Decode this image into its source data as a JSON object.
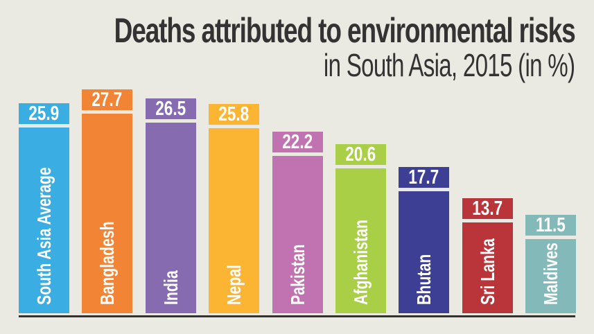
{
  "header": {
    "title": "Deaths attributed to environmental risks",
    "subtitle": "in South Asia, 2015 (in %)"
  },
  "colors": {
    "background": "#ebeae2",
    "text": "#333333",
    "baseline": "#333333"
  },
  "bars": [
    {
      "label": "South Asia Average",
      "value": "25.9",
      "color": "#3aaee3"
    },
    {
      "label": "Bangladesh",
      "value": "27.7",
      "color": "#f28535"
    },
    {
      "label": "India",
      "value": "26.5",
      "color": "#876bb0"
    },
    {
      "label": "Nepal",
      "value": "25.8",
      "color": "#fbb533"
    },
    {
      "label": "Pakistan",
      "value": "22.2",
      "color": "#c073b0"
    },
    {
      "label": "Afghanistan",
      "value": "20.6",
      "color": "#a8cf45"
    },
    {
      "label": "Bhutan",
      "value": "17.7",
      "color": "#3d3f95"
    },
    {
      "label": "Sri Lanka",
      "value": "13.7",
      "color": "#b9353a"
    },
    {
      "label": "Maldives",
      "value": "11.5",
      "color": "#84b9ba"
    }
  ],
  "chart_data": {
    "type": "bar",
    "title": "Deaths attributed to environmental risks",
    "subtitle": "in South Asia, 2015 (in %)",
    "categories": [
      "South Asia Average",
      "Bangladesh",
      "India",
      "Nepal",
      "Pakistan",
      "Afghanistan",
      "Bhutan",
      "Sri Lanka",
      "Maldives"
    ],
    "values": [
      25.9,
      27.7,
      26.5,
      25.8,
      22.2,
      20.6,
      17.7,
      13.7,
      11.5
    ],
    "xlabel": "",
    "ylabel": "",
    "unit": "%",
    "data_labels": true,
    "category_labels": "rotated inside bars",
    "grid": false,
    "legend": false,
    "colors": [
      "#3aaee3",
      "#f28535",
      "#876bb0",
      "#fbb533",
      "#c073b0",
      "#a8cf45",
      "#3d3f95",
      "#b9353a",
      "#84b9ba"
    ]
  }
}
